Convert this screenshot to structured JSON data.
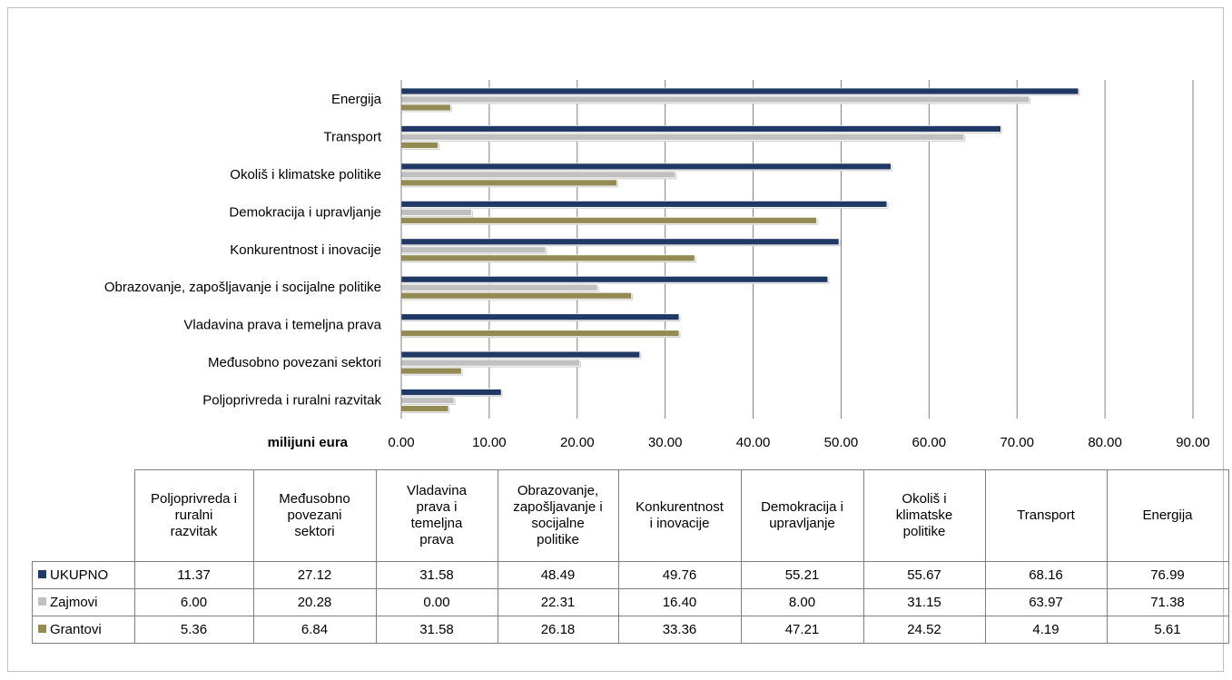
{
  "chart_data": {
    "type": "bar",
    "orientation": "horizontal",
    "axis_title": "milijuni eura",
    "xlim": [
      0,
      90
    ],
    "ticks": [
      "0.00",
      "10.00",
      "20.00",
      "30.00",
      "40.00",
      "50.00",
      "60.00",
      "70.00",
      "80.00",
      "90.00"
    ],
    "grid": true,
    "legend": "data-table-below",
    "categories_chart": [
      "Energija",
      "Transport",
      "Okoliš i klimatske politike",
      "Demokracija i upravljanje",
      "Konkurentnost i inovacije",
      "Obrazovanje, zapošljavanje i socijalne politike",
      "Vladavina prava i temeljna prava",
      "Međusobno povezani sektori",
      "Poljoprivreda i ruralni razvitak"
    ],
    "categories_table": [
      [
        "Poljoprivreda i",
        "ruralni",
        "razvitak"
      ],
      [
        "Međusobno",
        "povezani",
        "sektori"
      ],
      [
        "Vladavina",
        "prava i",
        "temeljna",
        "prava"
      ],
      [
        "Obrazovanje,",
        "zapošljavanje i",
        "socijalne",
        "politike"
      ],
      [
        "Konkurentnost",
        "i inovacije"
      ],
      [
        "Demokracija i",
        "upravljanje"
      ],
      [
        "Okoliš i",
        "klimatske",
        "politike"
      ],
      [
        "Transport"
      ],
      [
        "Energija"
      ]
    ],
    "series": [
      {
        "name": "UKUPNO",
        "color": "#1f3864",
        "values": [
          76.99,
          68.16,
          55.67,
          55.21,
          49.76,
          48.49,
          31.58,
          27.12,
          11.37
        ],
        "table_values": [
          "11.37",
          "27.12",
          "31.58",
          "48.49",
          "49.76",
          "55.21",
          "55.67",
          "68.16",
          "76.99"
        ]
      },
      {
        "name": "Zajmovi",
        "color": "#c0c0c0",
        "values": [
          71.38,
          63.97,
          31.15,
          8.0,
          16.4,
          22.31,
          0.0,
          20.28,
          6.0
        ],
        "table_values": [
          "6.00",
          "20.28",
          "0.00",
          "22.31",
          "16.40",
          "8.00",
          "31.15",
          "63.97",
          "71.38"
        ]
      },
      {
        "name": "Grantovi",
        "color": "#948a54",
        "values": [
          5.61,
          4.19,
          24.52,
          47.21,
          33.36,
          26.18,
          31.58,
          6.84,
          5.36
        ],
        "table_values": [
          "5.36",
          "6.84",
          "31.58",
          "26.18",
          "33.36",
          "47.21",
          "24.52",
          "4.19",
          "5.61"
        ]
      }
    ]
  }
}
